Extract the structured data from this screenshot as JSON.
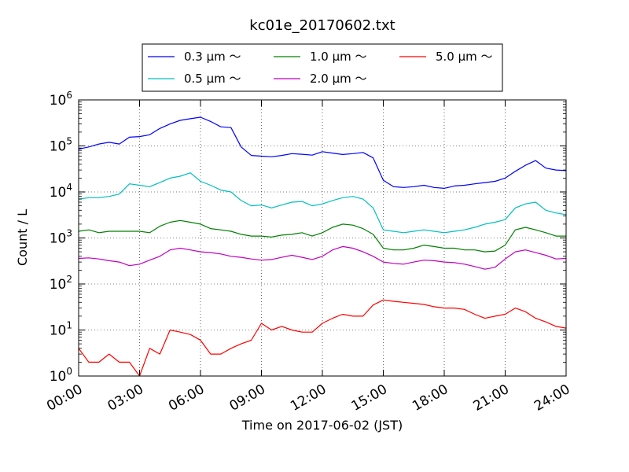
{
  "chart_data": {
    "type": "line",
    "title": "kc01e_20170602.txt",
    "xlabel": "Time on 2017-06-02 (JST)",
    "ylabel": "Count / L",
    "yscale": "log",
    "ylim": [
      1,
      1000000
    ],
    "xlim": [
      "00:00",
      "24:00"
    ],
    "grid": true,
    "legend_location": "top-center",
    "x_ticks": [
      "00:00",
      "03:00",
      "06:00",
      "09:00",
      "12:00",
      "15:00",
      "18:00",
      "21:00",
      "24:00"
    ],
    "y_ticks": [
      {
        "value": 1,
        "base": "10",
        "exp": "0"
      },
      {
        "value": 10,
        "base": "10",
        "exp": "1"
      },
      {
        "value": 100,
        "base": "10",
        "exp": "2"
      },
      {
        "value": 1000,
        "base": "10",
        "exp": "3"
      },
      {
        "value": 10000,
        "base": "10",
        "exp": "4"
      },
      {
        "value": 100000,
        "base": "10",
        "exp": "5"
      },
      {
        "value": 1000000,
        "base": "10",
        "exp": "6"
      }
    ],
    "series": [
      {
        "name": "0.3 μm ～",
        "color": "#0000ff",
        "x": [
          "00:00",
          "00:30",
          "01:00",
          "01:30",
          "02:00",
          "02:30",
          "03:00",
          "03:30",
          "04:00",
          "04:30",
          "05:00",
          "05:30",
          "06:00",
          "06:30",
          "07:00",
          "07:30",
          "08:00",
          "08:30",
          "09:00",
          "09:30",
          "10:00",
          "10:30",
          "11:00",
          "11:30",
          "12:00",
          "12:30",
          "13:00",
          "13:30",
          "14:00",
          "14:30",
          "15:00",
          "15:30",
          "16:00",
          "16:30",
          "17:00",
          "17:30",
          "18:00",
          "18:30",
          "19:00",
          "19:30",
          "20:00",
          "20:30",
          "21:00",
          "21:30",
          "22:00",
          "22:30",
          "23:00",
          "23:30",
          "24:00"
        ],
        "y": [
          85000,
          95000,
          110000,
          120000,
          110000,
          155000,
          160000,
          175000,
          240000,
          300000,
          360000,
          390000,
          420000,
          340000,
          260000,
          250000,
          95000,
          62000,
          60000,
          58000,
          62000,
          68000,
          66000,
          63000,
          75000,
          70000,
          65000,
          68000,
          72000,
          55000,
          18000,
          13000,
          12500,
          13000,
          14000,
          12500,
          12000,
          13500,
          14000,
          15000,
          16000,
          17000,
          20000,
          28000,
          38000,
          48000,
          33000,
          30000,
          29000
        ]
      },
      {
        "name": "0.5 μm ～",
        "color": "#00bfbf",
        "x": [
          "00:00",
          "00:30",
          "01:00",
          "01:30",
          "02:00",
          "02:30",
          "03:00",
          "03:30",
          "04:00",
          "04:30",
          "05:00",
          "05:30",
          "06:00",
          "06:30",
          "07:00",
          "07:30",
          "08:00",
          "08:30",
          "09:00",
          "09:30",
          "10:00",
          "10:30",
          "11:00",
          "11:30",
          "12:00",
          "12:30",
          "13:00",
          "13:30",
          "14:00",
          "14:30",
          "15:00",
          "15:30",
          "16:00",
          "16:30",
          "17:00",
          "17:30",
          "18:00",
          "18:30",
          "19:00",
          "19:30",
          "20:00",
          "20:30",
          "21:00",
          "21:30",
          "22:00",
          "22:30",
          "23:00",
          "23:30",
          "24:00"
        ],
        "y": [
          7000,
          7500,
          7500,
          8000,
          9000,
          15000,
          14000,
          13000,
          16000,
          20000,
          22000,
          26000,
          17000,
          14000,
          11000,
          10000,
          6500,
          5000,
          5200,
          4500,
          5200,
          6000,
          6200,
          5000,
          5500,
          6500,
          7500,
          8000,
          7000,
          4500,
          1500,
          1400,
          1300,
          1400,
          1500,
          1400,
          1300,
          1400,
          1500,
          1700,
          2000,
          2200,
          2500,
          4500,
          5500,
          6000,
          4000,
          3500,
          3200
        ]
      },
      {
        "name": "1.0 μm ～",
        "color": "#008000",
        "x": [
          "00:00",
          "00:30",
          "01:00",
          "01:30",
          "02:00",
          "02:30",
          "03:00",
          "03:30",
          "04:00",
          "04:30",
          "05:00",
          "05:30",
          "06:00",
          "06:30",
          "07:00",
          "07:30",
          "08:00",
          "08:30",
          "09:00",
          "09:30",
          "10:00",
          "10:30",
          "11:00",
          "11:30",
          "12:00",
          "12:30",
          "13:00",
          "13:30",
          "14:00",
          "14:30",
          "15:00",
          "15:30",
          "16:00",
          "16:30",
          "17:00",
          "17:30",
          "18:00",
          "18:30",
          "19:00",
          "19:30",
          "20:00",
          "20:30",
          "21:00",
          "21:30",
          "22:00",
          "22:30",
          "23:00",
          "23:30",
          "24:00"
        ],
        "y": [
          1400,
          1500,
          1300,
          1400,
          1400,
          1400,
          1400,
          1300,
          1800,
          2200,
          2400,
          2200,
          2000,
          1600,
          1500,
          1400,
          1200,
          1100,
          1100,
          1050,
          1150,
          1200,
          1300,
          1100,
          1300,
          1700,
          2000,
          1900,
          1600,
          1200,
          600,
          550,
          550,
          600,
          700,
          650,
          600,
          600,
          550,
          550,
          500,
          520,
          700,
          1500,
          1700,
          1500,
          1300,
          1100,
          1100
        ]
      },
      {
        "name": "2.0 μm ～",
        "color": "#bf00bf",
        "x": [
          "00:00",
          "00:30",
          "01:00",
          "01:30",
          "02:00",
          "02:30",
          "03:00",
          "03:30",
          "04:00",
          "04:30",
          "05:00",
          "05:30",
          "06:00",
          "06:30",
          "07:00",
          "07:30",
          "08:00",
          "08:30",
          "09:00",
          "09:30",
          "10:00",
          "10:30",
          "11:00",
          "11:30",
          "12:00",
          "12:30",
          "13:00",
          "13:30",
          "14:00",
          "14:30",
          "15:00",
          "15:30",
          "16:00",
          "16:30",
          "17:00",
          "17:30",
          "18:00",
          "18:30",
          "19:00",
          "19:30",
          "20:00",
          "20:30",
          "21:00",
          "21:30",
          "22:00",
          "22:30",
          "23:00",
          "23:30",
          "24:00"
        ],
        "y": [
          360,
          370,
          350,
          320,
          300,
          250,
          270,
          330,
          400,
          550,
          600,
          550,
          500,
          480,
          450,
          400,
          380,
          350,
          330,
          340,
          380,
          420,
          380,
          340,
          400,
          550,
          650,
          600,
          500,
          400,
          300,
          280,
          270,
          300,
          330,
          320,
          300,
          290,
          270,
          240,
          210,
          230,
          350,
          500,
          550,
          480,
          420,
          350,
          360
        ]
      },
      {
        "name": "5.0 μm ～",
        "color": "#ff0000",
        "x": [
          "00:00",
          "00:30",
          "01:00",
          "01:30",
          "02:00",
          "02:30",
          "03:00",
          "03:30",
          "04:00",
          "04:30",
          "05:00",
          "05:30",
          "06:00",
          "06:30",
          "07:00",
          "07:30",
          "08:00",
          "08:30",
          "09:00",
          "09:30",
          "10:00",
          "10:30",
          "11:00",
          "11:30",
          "12:00",
          "12:30",
          "13:00",
          "13:30",
          "14:00",
          "14:30",
          "15:00",
          "15:30",
          "16:00",
          "16:30",
          "17:00",
          "17:30",
          "18:00",
          "18:30",
          "19:00",
          "19:30",
          "20:00",
          "20:30",
          "21:00",
          "21:30",
          "22:00",
          "22:30",
          "23:00",
          "23:30",
          "24:00"
        ],
        "y": [
          4,
          2,
          2,
          3,
          2,
          2,
          1,
          4,
          3,
          10,
          9,
          8,
          6,
          3,
          3,
          4,
          5,
          6,
          14,
          10,
          12,
          10,
          9,
          9,
          14,
          18,
          22,
          20,
          20,
          35,
          45,
          42,
          40,
          38,
          36,
          32,
          30,
          30,
          28,
          22,
          18,
          20,
          22,
          30,
          25,
          18,
          15,
          12,
          11
        ]
      }
    ]
  }
}
